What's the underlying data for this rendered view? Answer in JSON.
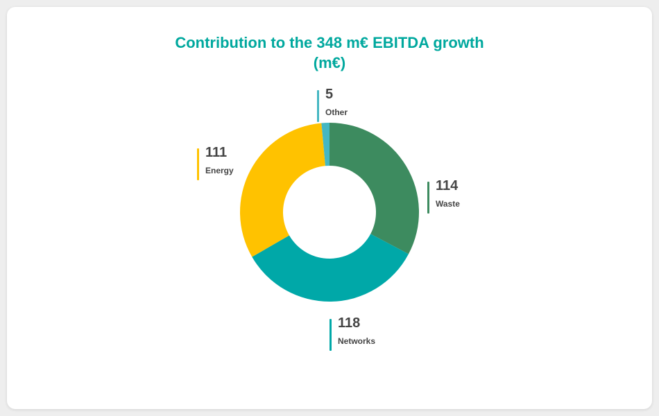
{
  "chart_data": {
    "type": "pie",
    "donut": true,
    "title": "Contribution to the 348 m€ EBITDA growth",
    "subtitle": "(m€)",
    "segments": [
      {
        "label": "Waste",
        "value": 114,
        "color": "#3d8b5f"
      },
      {
        "label": "Networks",
        "value": 118,
        "color": "#00a8a8"
      },
      {
        "label": "Energy",
        "value": 111,
        "color": "#ffc200"
      },
      {
        "label": "Other",
        "value": 5,
        "color": "#45b7c2"
      }
    ]
  },
  "colors": {
    "title": "#00a89e",
    "text": "#444444"
  }
}
